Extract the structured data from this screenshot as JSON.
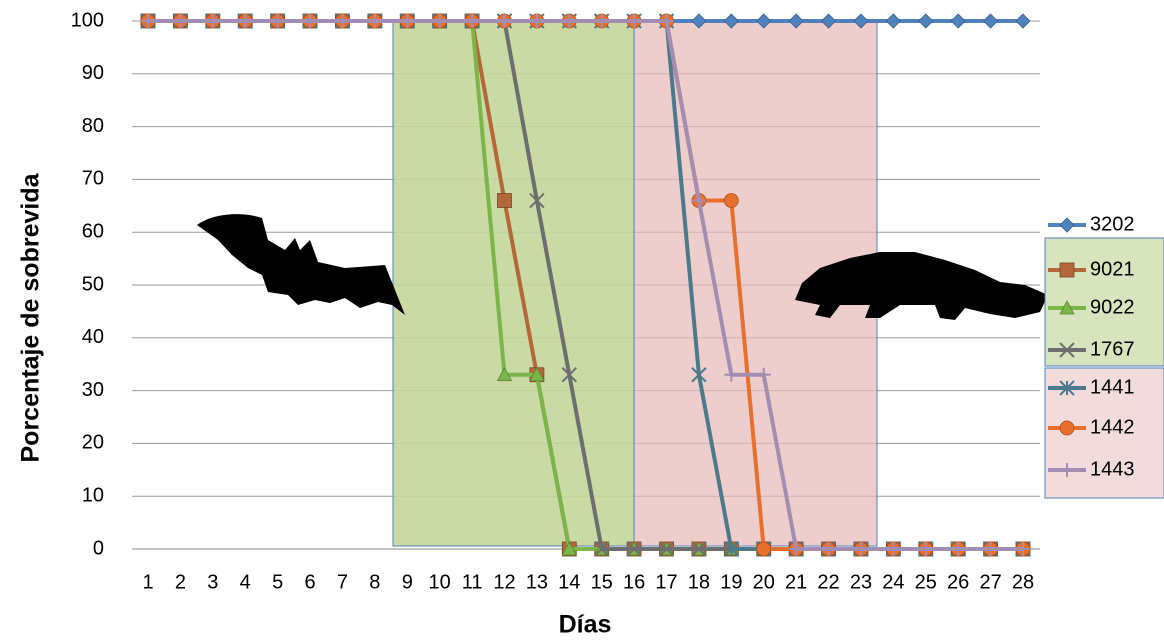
{
  "chart_data": {
    "type": "line",
    "x_label": "Días",
    "y_label": "Porcentaje de sobrevida",
    "categories": [
      "1",
      "2",
      "3",
      "4",
      "5",
      "6",
      "7",
      "8",
      "9",
      "10",
      "11",
      "12",
      "13",
      "14",
      "15",
      "16",
      "17",
      "18",
      "19",
      "20",
      "21",
      "22",
      "23",
      "24",
      "25",
      "26",
      "27",
      "28"
    ],
    "ylim": [
      0,
      100
    ],
    "yticks": [
      0,
      10,
      20,
      30,
      40,
      50,
      60,
      70,
      80,
      90,
      100
    ],
    "grid": true,
    "series": [
      {
        "name": "3202",
        "color": "#4f81bd",
        "marker": "diamond",
        "values": [
          100,
          100,
          100,
          100,
          100,
          100,
          100,
          100,
          100,
          100,
          100,
          100,
          100,
          100,
          100,
          100,
          100,
          100,
          100,
          100,
          100,
          100,
          100,
          100,
          100,
          100,
          100,
          100
        ]
      },
      {
        "name": "9021",
        "color": "#b4683a",
        "marker": "square",
        "values": [
          100,
          100,
          100,
          100,
          100,
          100,
          100,
          100,
          100,
          100,
          100,
          66,
          33,
          0,
          0,
          0,
          0,
          0,
          0,
          0,
          0,
          0,
          0,
          0,
          0,
          0,
          0,
          0
        ]
      },
      {
        "name": "9022",
        "color": "#7db648",
        "marker": "triangle",
        "values": [
          100,
          100,
          100,
          100,
          100,
          100,
          100,
          100,
          100,
          100,
          100,
          33,
          33,
          0,
          0,
          0,
          0,
          0,
          0,
          0,
          0,
          0,
          0,
          0,
          0,
          0,
          0,
          0
        ]
      },
      {
        "name": "1767",
        "color": "#6e6e6e",
        "marker": "x",
        "values": [
          100,
          100,
          100,
          100,
          100,
          100,
          100,
          100,
          100,
          100,
          100,
          100,
          66,
          33,
          0,
          0,
          0,
          0,
          0,
          0,
          0,
          0,
          0,
          0,
          0,
          0,
          0,
          0
        ]
      },
      {
        "name": "1441",
        "color": "#4c7a8a",
        "marker": "star",
        "values": [
          100,
          100,
          100,
          100,
          100,
          100,
          100,
          100,
          100,
          100,
          100,
          100,
          100,
          100,
          100,
          100,
          100,
          33,
          0,
          0,
          0,
          0,
          0,
          0,
          0,
          0,
          0,
          0
        ]
      },
      {
        "name": "1442",
        "color": "#e8702e",
        "marker": "circle",
        "values": [
          100,
          100,
          100,
          100,
          100,
          100,
          100,
          100,
          100,
          100,
          100,
          100,
          100,
          100,
          100,
          100,
          100,
          66,
          66,
          0,
          0,
          0,
          0,
          0,
          0,
          0,
          0,
          0
        ]
      },
      {
        "name": "1443",
        "color": "#a38db3",
        "marker": "plus",
        "values": [
          100,
          100,
          100,
          100,
          100,
          100,
          100,
          100,
          100,
          100,
          100,
          100,
          100,
          100,
          100,
          100,
          100,
          66,
          33,
          33,
          0,
          0,
          0,
          0,
          0,
          0,
          0,
          0
        ]
      }
    ]
  }
}
